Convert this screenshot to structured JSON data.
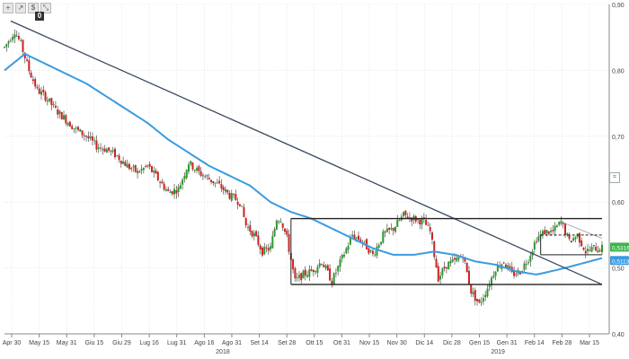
{
  "toolbar": {
    "icons": [
      "plus-icon",
      "arrow-icon",
      "dollar-icon",
      "pan-icon"
    ],
    "glyphs": [
      "+",
      "↗",
      "$",
      "⤡"
    ],
    "menu_label": "0"
  },
  "colors": {
    "up": "#2a9a2a",
    "down": "#cc2222",
    "ma": "#3a9be0",
    "trend": "#3a4a60",
    "box": "#222222",
    "grid": "#d9d9d9",
    "price_badge": "#3bb54a",
    "ma_badge": "#3a9be0"
  },
  "chart_data": {
    "type": "candlestick",
    "y_range": [
      0.4,
      0.9
    ],
    "y_ticks": [
      "0,90",
      "0,80",
      "0,70",
      "0,60",
      "0,50",
      "0,40"
    ],
    "y_tick_values": [
      0.9,
      0.8,
      0.7,
      0.6,
      0.5,
      0.4
    ],
    "x_ticks": [
      "Apr 30",
      "May 15",
      "May 31",
      "Giu 15",
      "Giu 29",
      "Lug 16",
      "Lug 31",
      "Ago 16",
      "Ago 31",
      "Set 14",
      "Set 28",
      "Ott 15",
      "Ott 31",
      "Nov 15",
      "Nov 30",
      "Dic 14",
      "Dic 28",
      "Gen 15",
      "Gen 31",
      "Feb 14",
      "Feb 28",
      "Mar 15"
    ],
    "year_labels": [
      {
        "label": "2018",
        "at_tick": 8
      },
      {
        "label": "2019",
        "at_tick": 18
      }
    ],
    "price_path": [
      [
        0,
        0.835
      ],
      [
        5,
        0.86
      ],
      [
        8,
        0.84
      ],
      [
        12,
        0.8
      ],
      [
        16,
        0.77
      ],
      [
        20,
        0.76
      ],
      [
        25,
        0.74
      ],
      [
        30,
        0.725
      ],
      [
        35,
        0.71
      ],
      [
        40,
        0.7
      ],
      [
        45,
        0.685
      ],
      [
        50,
        0.68
      ],
      [
        55,
        0.67
      ],
      [
        60,
        0.655
      ],
      [
        65,
        0.645
      ],
      [
        70,
        0.655
      ],
      [
        75,
        0.635
      ],
      [
        80,
        0.615
      ],
      [
        85,
        0.62
      ],
      [
        90,
        0.66
      ],
      [
        95,
        0.645
      ],
      [
        100,
        0.635
      ],
      [
        105,
        0.625
      ],
      [
        110,
        0.61
      ],
      [
        115,
        0.6
      ],
      [
        118,
        0.565
      ],
      [
        122,
        0.55
      ],
      [
        126,
        0.525
      ],
      [
        130,
        0.53
      ],
      [
        133,
        0.575
      ],
      [
        135,
        0.575
      ],
      [
        138,
        0.545
      ],
      [
        142,
        0.48
      ],
      [
        146,
        0.49
      ],
      [
        150,
        0.495
      ],
      [
        155,
        0.51
      ],
      [
        160,
        0.48
      ],
      [
        165,
        0.515
      ],
      [
        170,
        0.55
      ],
      [
        175,
        0.54
      ],
      [
        180,
        0.52
      ],
      [
        185,
        0.55
      ],
      [
        190,
        0.56
      ],
      [
        195,
        0.58
      ],
      [
        200,
        0.575
      ],
      [
        205,
        0.57
      ],
      [
        208,
        0.555
      ],
      [
        212,
        0.485
      ],
      [
        216,
        0.505
      ],
      [
        220,
        0.51
      ],
      [
        224,
        0.52
      ],
      [
        228,
        0.465
      ],
      [
        232,
        0.445
      ],
      [
        236,
        0.47
      ],
      [
        240,
        0.5
      ],
      [
        244,
        0.51
      ],
      [
        248,
        0.49
      ],
      [
        252,
        0.495
      ],
      [
        256,
        0.515
      ],
      [
        260,
        0.545
      ],
      [
        264,
        0.555
      ],
      [
        268,
        0.555
      ],
      [
        272,
        0.57
      ],
      [
        276,
        0.54
      ],
      [
        280,
        0.55
      ],
      [
        284,
        0.525
      ],
      [
        288,
        0.53
      ],
      [
        292,
        0.53
      ]
    ],
    "ma_path": [
      [
        0,
        0.8
      ],
      [
        10,
        0.825
      ],
      [
        20,
        0.81
      ],
      [
        30,
        0.795
      ],
      [
        40,
        0.78
      ],
      [
        50,
        0.76
      ],
      [
        60,
        0.74
      ],
      [
        70,
        0.72
      ],
      [
        80,
        0.695
      ],
      [
        90,
        0.675
      ],
      [
        100,
        0.655
      ],
      [
        110,
        0.64
      ],
      [
        120,
        0.625
      ],
      [
        130,
        0.6
      ],
      [
        140,
        0.585
      ],
      [
        150,
        0.575
      ],
      [
        160,
        0.56
      ],
      [
        170,
        0.545
      ],
      [
        180,
        0.53
      ],
      [
        190,
        0.52
      ],
      [
        200,
        0.52
      ],
      [
        210,
        0.525
      ],
      [
        220,
        0.52
      ],
      [
        230,
        0.51
      ],
      [
        240,
        0.505
      ],
      [
        250,
        0.495
      ],
      [
        260,
        0.49
      ],
      [
        270,
        0.497
      ],
      [
        280,
        0.505
      ],
      [
        292,
        0.515
      ]
    ],
    "trendlines": [
      {
        "from": [
          3,
          0.875
        ],
        "to": [
          292,
          0.475
        ]
      },
      {
        "from": [
          272,
          0.57
        ],
        "to": [
          292,
          0.545
        ],
        "style": "thin"
      }
    ],
    "channel": {
      "x_start": 140,
      "x_end": 292,
      "upper": 0.575,
      "lower": 0.475
    },
    "support_box": {
      "x_start": 262,
      "x_end": 292,
      "upper": 0.55,
      "lower": 0.52,
      "dashed_top": true
    },
    "last_price_label": "0,5316",
    "ma_value_label": "0,5113",
    "last_price": 0.5316,
    "ma_value": 0.5113,
    "n_bars": 293
  }
}
